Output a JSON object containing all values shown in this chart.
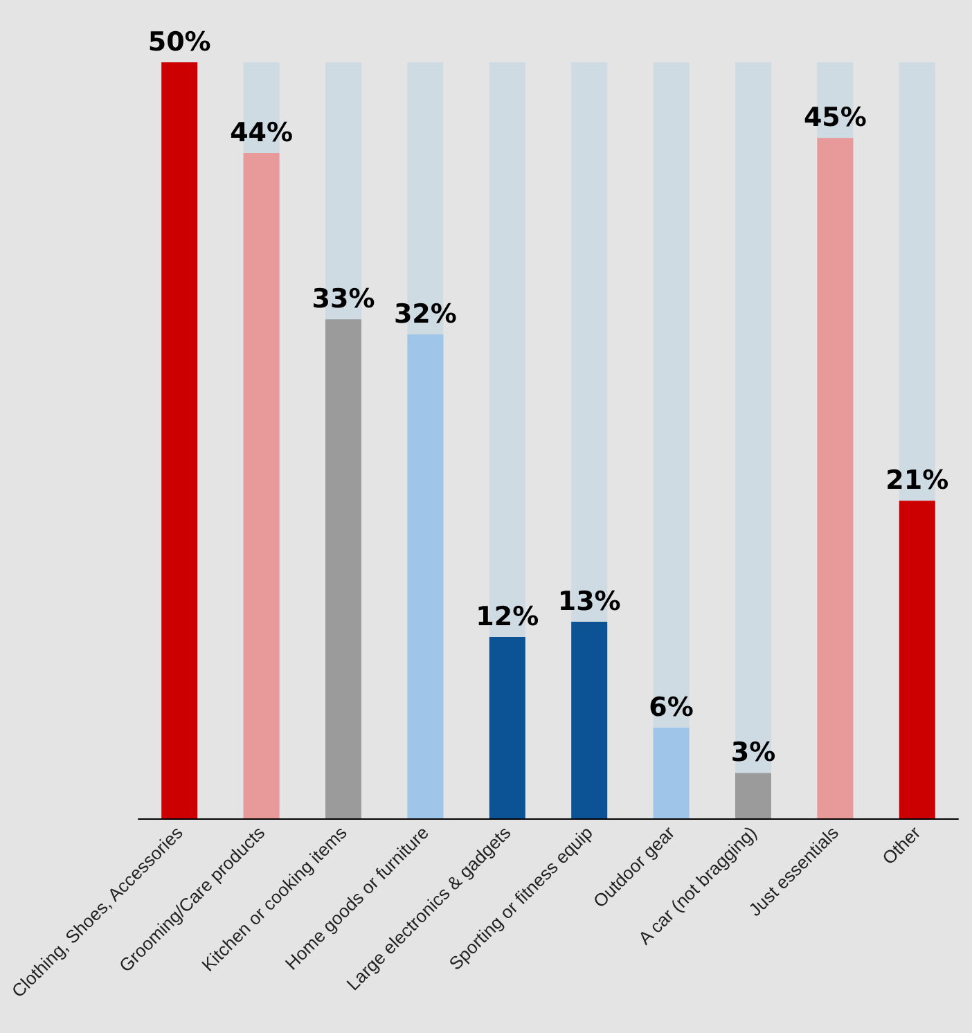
{
  "chart_data": {
    "type": "bar",
    "categories": [
      "Clothing, Shoes, Accessories",
      "Grooming/Care products",
      "Kitchen or cooking items",
      "Home goods or furniture",
      "Large electronics & gadgets",
      "Sporting or fitness equip",
      "Outdoor gear",
      "A car (not bragging)",
      "Just essentials",
      "Other"
    ],
    "values": [
      50,
      44,
      33,
      32,
      12,
      13,
      6,
      3,
      45,
      21
    ],
    "colors": [
      "#cc0000",
      "#e89a9a",
      "#9b9b9b",
      "#9fc5e8",
      "#0b5394",
      "#0b5394",
      "#9fc5e8",
      "#9b9b9b",
      "#e89a9a",
      "#cc0000"
    ],
    "value_labels": [
      "50%",
      "44%",
      "33%",
      "32%",
      "12%",
      "13%",
      "6%",
      "3%",
      "45%",
      "21%"
    ]
  }
}
